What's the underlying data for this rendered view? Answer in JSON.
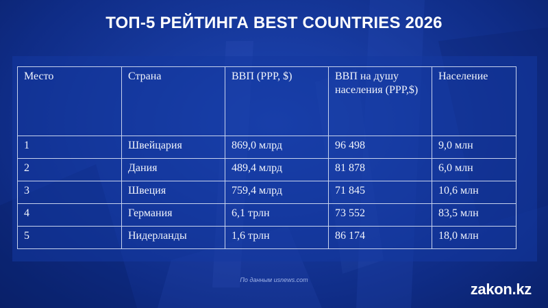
{
  "title": "ТОП-5 РЕЙТИНГА BEST COUNTRIES 2026",
  "table": {
    "headers": [
      "Место",
      "Страна",
      "ВВП (PPP, $)",
      "ВВП на душу населения (PPP,$)",
      "Население"
    ],
    "rows": [
      [
        "1",
        "Швейцария",
        "869,0 млрд",
        "96 498",
        "9,0 млн"
      ],
      [
        "2",
        "Дания",
        "489,4 млрд",
        "81 878",
        "6,0 млн"
      ],
      [
        "3",
        "Швеция",
        "759,4 млрд",
        "71 845",
        "10,6 млн"
      ],
      [
        "4",
        "Германия",
        "6,1 трлн",
        "73 552",
        "83,5 млн"
      ],
      [
        "5",
        "Нидерланды",
        "1,6 трлн",
        "86 174",
        "18,0 млн"
      ]
    ]
  },
  "source": "По данным usnews.com",
  "logo": "zakon.kz",
  "colors": {
    "background": "#0f2c86",
    "panel": "#1438a0",
    "text": "#ffffff",
    "grid": "#c9d4ee"
  }
}
